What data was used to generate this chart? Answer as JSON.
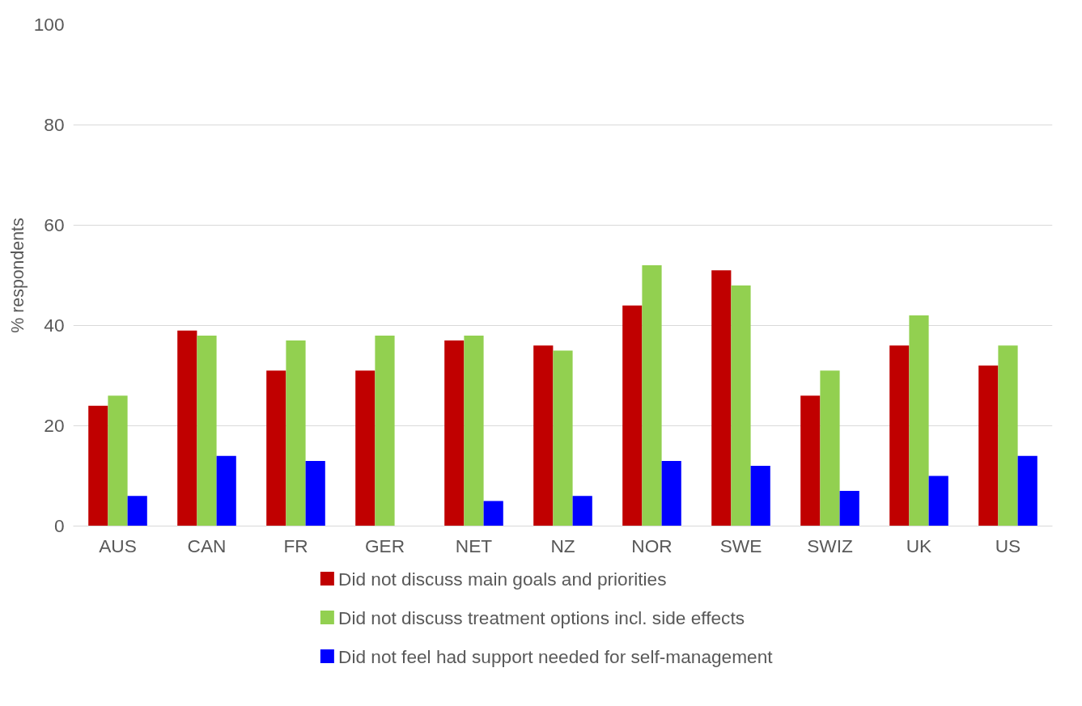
{
  "chart_data": {
    "type": "bar",
    "ylabel": "% respondents",
    "categories": [
      "AUS",
      "CAN",
      "FR",
      "GER",
      "NET",
      "NZ",
      "NOR",
      "SWE",
      "SWIZ",
      "UK",
      "US"
    ],
    "series": [
      {
        "name": "Did not discuss main goals and priorities",
        "color": "#c00000",
        "values": [
          24,
          39,
          31,
          31,
          37,
          36,
          44,
          51,
          26,
          36,
          32
        ]
      },
      {
        "name": "Did not discuss treatment options incl. side effects",
        "color": "#92d050",
        "values": [
          26,
          38,
          37,
          38,
          38,
          35,
          52,
          48,
          31,
          42,
          36
        ]
      },
      {
        "name": "Did not feel had support needed for self-management",
        "color": "#0000ff",
        "values": [
          6,
          14,
          13,
          null,
          5,
          6,
          13,
          12,
          7,
          10,
          14
        ]
      }
    ],
    "ylim": [
      0,
      100
    ],
    "yticks": [
      0,
      20,
      40,
      60,
      80,
      100
    ],
    "grid": "y",
    "legend": "bottom"
  }
}
